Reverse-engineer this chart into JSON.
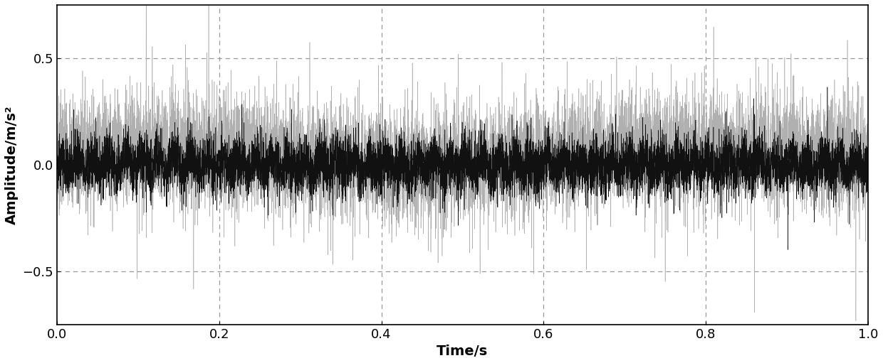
{
  "title": "",
  "xlabel": "Time/s",
  "ylabel": "Amplitude/m/s²",
  "xlim": [
    0,
    1
  ],
  "ylim": [
    -0.75,
    0.75
  ],
  "yticks": [
    -0.5,
    0,
    0.5
  ],
  "xticks": [
    0,
    0.2,
    0.4,
    0.6,
    0.8,
    1
  ],
  "grid_color": "#999999",
  "gray_color": "#b0b0b0",
  "black_color": "#111111",
  "n_samples": 10000,
  "figsize": [
    12.4,
    5.11
  ],
  "dpi": 100,
  "background_color": "#ffffff",
  "xlabel_fontsize": 14,
  "ylabel_fontsize": 14,
  "tick_fontsize": 13
}
